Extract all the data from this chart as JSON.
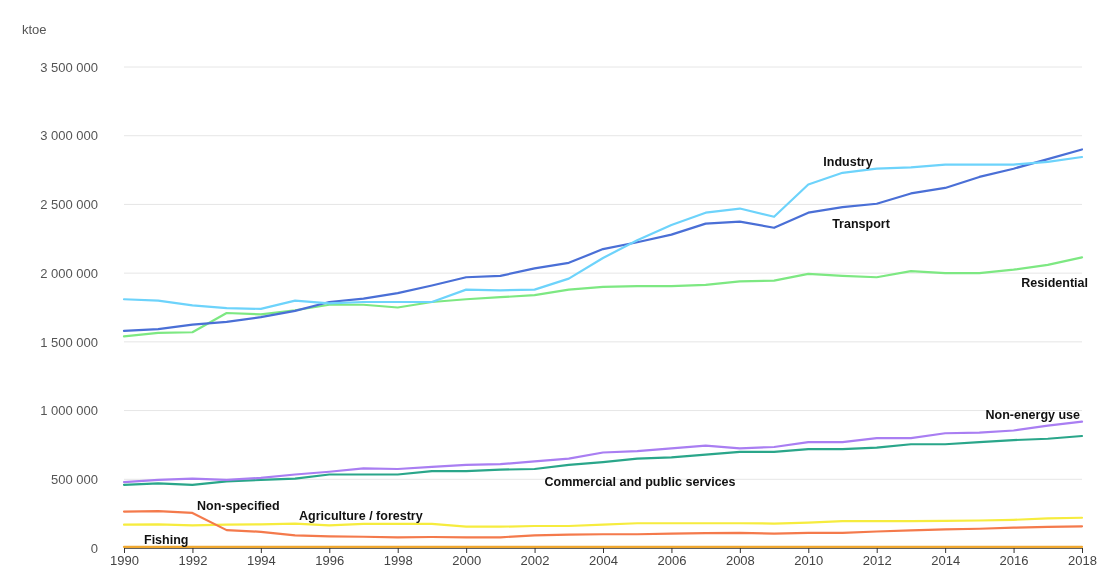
{
  "chart_data": {
    "type": "line",
    "ylabel": "ktoe",
    "x": [
      1990,
      1991,
      1992,
      1993,
      1994,
      1995,
      1996,
      1997,
      1998,
      1999,
      2000,
      2001,
      2002,
      2003,
      2004,
      2005,
      2006,
      2007,
      2008,
      2009,
      2010,
      2011,
      2012,
      2013,
      2014,
      2015,
      2016,
      2017,
      2018
    ],
    "xlim": [
      1990,
      2018
    ],
    "xticks": [
      1990,
      1992,
      1994,
      1996,
      1998,
      2000,
      2002,
      2004,
      2006,
      2008,
      2010,
      2012,
      2014,
      2016,
      2018
    ],
    "ylim": [
      0,
      3500000
    ],
    "yticks": [
      {
        "value": 0,
        "label": "0"
      },
      {
        "value": 500000,
        "label": "500 000"
      },
      {
        "value": 1000000,
        "label": "1 000 000"
      },
      {
        "value": 1500000,
        "label": "1 500 000"
      },
      {
        "value": 2000000,
        "label": "2 000 000"
      },
      {
        "value": 2500000,
        "label": "2 500 000"
      },
      {
        "value": 3000000,
        "label": "3 000 000"
      },
      {
        "value": 3500000,
        "label": "3 500 000"
      }
    ],
    "grid": "y",
    "legend": false,
    "marker": "none",
    "line_style": "solid",
    "series": [
      {
        "name": "Industry",
        "color": "#6dd3fb",
        "values": [
          1810000,
          1800000,
          1765000,
          1745000,
          1740000,
          1800000,
          1780000,
          1790000,
          1790000,
          1790000,
          1880000,
          1875000,
          1880000,
          1960000,
          2110000,
          2240000,
          2350000,
          2440000,
          2470000,
          2410000,
          2645000,
          2730000,
          2760000,
          2770000,
          2790000,
          2790000,
          2790000,
          2810000,
          2845000
        ]
      },
      {
        "name": "Transport",
        "color": "#4a6fd6",
        "values": [
          1580000,
          1592000,
          1625000,
          1645000,
          1680000,
          1725000,
          1790000,
          1815000,
          1855000,
          1910000,
          1970000,
          1980000,
          2035000,
          2075000,
          2175000,
          2225000,
          2280000,
          2360000,
          2375000,
          2330000,
          2440000,
          2480000,
          2505000,
          2580000,
          2620000,
          2700000,
          2760000,
          2830000,
          2900000
        ]
      },
      {
        "name": "Residential",
        "color": "#7de882",
        "values": [
          1540000,
          1565000,
          1570000,
          1710000,
          1700000,
          1730000,
          1770000,
          1770000,
          1750000,
          1790000,
          1810000,
          1825000,
          1840000,
          1880000,
          1900000,
          1905000,
          1905000,
          1915000,
          1940000,
          1945000,
          1995000,
          1980000,
          1970000,
          2015000,
          2000000,
          2000000,
          2025000,
          2060000,
          2115000
        ]
      },
      {
        "name": "Non-energy use",
        "color": "#a97ef2",
        "values": [
          480000,
          495000,
          505000,
          495000,
          510000,
          535000,
          555000,
          580000,
          575000,
          590000,
          605000,
          610000,
          630000,
          650000,
          695000,
          705000,
          725000,
          745000,
          725000,
          735000,
          770000,
          770000,
          800000,
          800000,
          835000,
          840000,
          855000,
          890000,
          920000
        ]
      },
      {
        "name": "Commercial and public services",
        "color": "#2aa68a",
        "values": [
          460000,
          470000,
          460000,
          485000,
          495000,
          505000,
          535000,
          535000,
          535000,
          560000,
          560000,
          570000,
          575000,
          605000,
          625000,
          650000,
          660000,
          680000,
          700000,
          700000,
          720000,
          720000,
          730000,
          755000,
          755000,
          770000,
          785000,
          795000,
          815000
        ]
      },
      {
        "name": "Non-specified",
        "color": "#f47a4c",
        "values": [
          265000,
          268000,
          255000,
          130000,
          118000,
          92000,
          85000,
          82000,
          78000,
          80000,
          78000,
          78000,
          92000,
          98000,
          100000,
          100000,
          105000,
          108000,
          110000,
          105000,
          110000,
          110000,
          120000,
          128000,
          135000,
          140000,
          148000,
          153000,
          158000
        ]
      },
      {
        "name": "Agriculture / forestry",
        "color": "#f6ec3e",
        "values": [
          170000,
          172000,
          165000,
          170000,
          172000,
          178000,
          165000,
          175000,
          175000,
          175000,
          155000,
          155000,
          160000,
          160000,
          170000,
          180000,
          180000,
          180000,
          180000,
          178000,
          185000,
          195000,
          195000,
          195000,
          198000,
          200000,
          205000,
          215000,
          220000
        ]
      },
      {
        "name": "Fishing",
        "color": "#f0a830",
        "values": [
          8000,
          8000,
          8000,
          8000,
          8000,
          8000,
          8000,
          8000,
          8000,
          8000,
          8000,
          8000,
          8000,
          8000,
          8000,
          8000,
          8000,
          8000,
          8000,
          8000,
          8000,
          8000,
          8000,
          8000,
          8000,
          8000,
          8000,
          8000,
          8000
        ]
      }
    ]
  }
}
